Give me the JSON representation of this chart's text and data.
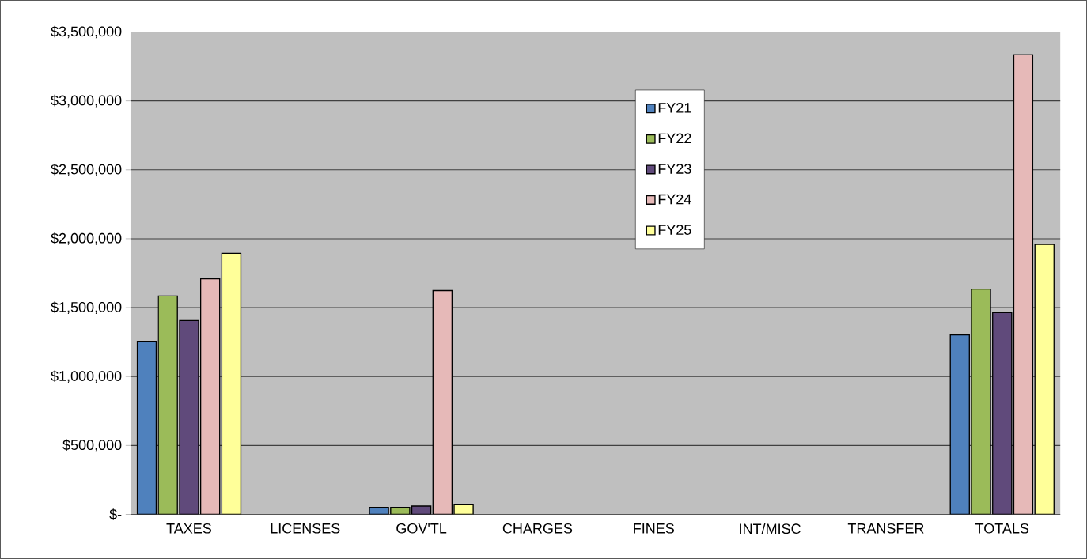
{
  "chart_data": {
    "type": "bar",
    "categories": [
      "TAXES",
      "LICENSES",
      "GOV'TL",
      "CHARGES",
      "FINES",
      "INT/MISC",
      "TRANSFER",
      "TOTALS"
    ],
    "series": [
      {
        "name": "FY21",
        "color": "#4f81bd",
        "values": [
          1255000,
          null,
          50000,
          null,
          null,
          null,
          null,
          1302000
        ]
      },
      {
        "name": "FY22",
        "color": "#9bbb59",
        "values": [
          1584000,
          null,
          50000,
          null,
          null,
          null,
          null,
          1635000
        ]
      },
      {
        "name": "FY23",
        "color": "#604a7b",
        "values": [
          1406000,
          null,
          60000,
          null,
          null,
          null,
          null,
          1464000
        ]
      },
      {
        "name": "FY24",
        "color": "#e6b9b8",
        "values": [
          1710000,
          null,
          1624000,
          null,
          null,
          null,
          null,
          3335000
        ]
      },
      {
        "name": "FY25",
        "color": "#ffff99",
        "values": [
          1894000,
          null,
          70000,
          null,
          null,
          null,
          null,
          1959000
        ]
      }
    ],
    "ylim": [
      0,
      3500000
    ],
    "yticks": [
      {
        "value": 0,
        "label": "$-"
      },
      {
        "value": 500000,
        "label": "$500,000"
      },
      {
        "value": 1000000,
        "label": "$1,000,000"
      },
      {
        "value": 1500000,
        "label": "$1,500,000"
      },
      {
        "value": 2000000,
        "label": "$2,000,000"
      },
      {
        "value": 2500000,
        "label": "$2,500,000"
      },
      {
        "value": 3000000,
        "label": "$3,000,000"
      },
      {
        "value": 3500000,
        "label": "$3,500,000"
      }
    ],
    "grid": "y",
    "legend": "top"
  }
}
